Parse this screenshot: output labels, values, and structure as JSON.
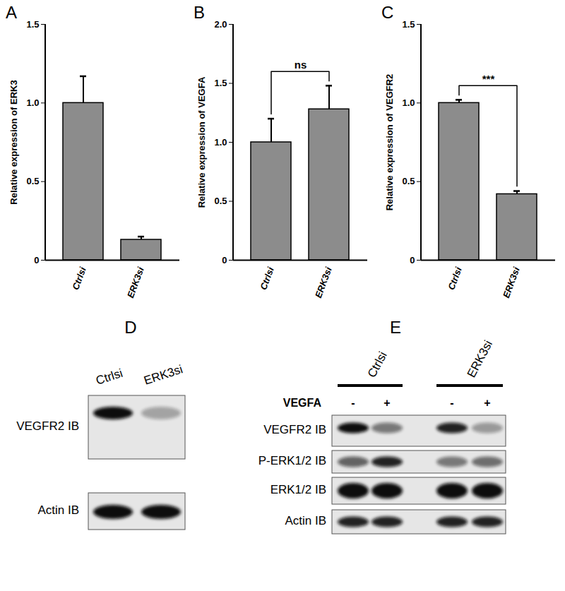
{
  "chart_data": [
    {
      "type": "bar",
      "title": "A",
      "y_label": "Relative expression of ERK3",
      "categories": [
        "Ctrlsi",
        "ERK3si"
      ],
      "values": [
        1.0,
        0.13
      ],
      "errors": [
        0.17,
        0.02
      ],
      "color": "#8c8c8c",
      "ylim": [
        0,
        1.5
      ],
      "yticks": [
        0,
        0.5,
        {
          "value": 1,
          "label": "1.0"
        },
        1.5
      ]
    },
    {
      "type": "bar",
      "title": "B",
      "y_label": "Relative expression of VEGFA",
      "categories": [
        "Ctrlsi",
        "ERK3si"
      ],
      "values": [
        1.0,
        1.28
      ],
      "errors": [
        0.2,
        0.2
      ],
      "color": "#8c8c8c",
      "ylim": [
        0,
        2
      ],
      "yticks": [
        0,
        0.5,
        {
          "value": 1,
          "label": "1.0"
        },
        1.5,
        {
          "value": 2,
          "label": "2.0"
        }
      ],
      "annotations": [
        "ns"
      ]
    },
    {
      "type": "bar",
      "title": "C",
      "y_label": "Relative expression of VEGFR2",
      "categories": [
        "Ctrlsi",
        "ERK3si"
      ],
      "values": [
        1.0,
        0.42
      ],
      "errors": [
        0.02,
        0.02
      ],
      "color": "#8c8c8c",
      "ylim": [
        0,
        1.5
      ],
      "yticks": [
        0,
        0.5,
        {
          "value": 1,
          "label": "1.0"
        },
        1.5
      ],
      "annotations": [
        "***"
      ]
    }
  ],
  "blots": [
    {
      "panel": "D",
      "lanes": [
        "Ctrlsi",
        "ERK3si"
      ],
      "rows": [
        {
          "label": "VEGFR2 IB",
          "bands": [
            1.0,
            0.3
          ]
        },
        {
          "label": "Actin IB",
          "bands": [
            1.0,
            1.0
          ]
        }
      ]
    },
    {
      "panel": "E",
      "treatment": "VEGFA",
      "groups": [
        {
          "label": "Ctrlsi",
          "lanes": [
            "-",
            "+"
          ]
        },
        {
          "label": "ERK3si",
          "lanes": [
            "-",
            "+"
          ]
        }
      ],
      "rows": [
        {
          "label": "VEGFR2 IB",
          "bands": [
            1.0,
            0.5,
            0.9,
            0.35
          ]
        },
        {
          "label": "P-ERK1/2 IB",
          "bands": [
            0.6,
            0.9,
            0.5,
            0.55
          ]
        },
        {
          "label": "ERK1/2 IB",
          "bands": [
            1.0,
            1.0,
            1.0,
            1.0
          ]
        },
        {
          "label": "Actin IB",
          "bands": [
            0.9,
            0.9,
            0.9,
            0.9
          ]
        }
      ]
    }
  ]
}
